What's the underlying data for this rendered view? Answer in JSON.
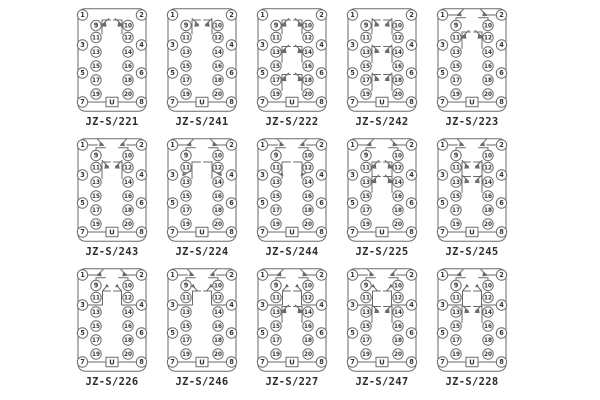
{
  "sheet": {
    "background": "#ffffff"
  },
  "colors": {
    "line": "#6a6a6c",
    "number": "#333335",
    "label": "#2d2d2f",
    "terminal_fill": "#ffffff"
  },
  "socket": {
    "corner_terminals": [
      {
        "n": "1",
        "pos": "top-left"
      },
      {
        "n": "2",
        "pos": "top-right"
      },
      {
        "n": "7",
        "pos": "bottom-left"
      },
      {
        "n": "8",
        "pos": "bottom-right"
      }
    ],
    "left_terminals": [
      "3",
      "5"
    ],
    "right_terminals": [
      "4",
      "6"
    ],
    "inner_left_terminals": [
      "9",
      "11",
      "13",
      "15",
      "17",
      "19"
    ],
    "inner_right_terminals": [
      "10",
      "12",
      "14",
      "16",
      "18",
      "20"
    ],
    "power_label": "U"
  },
  "diagrams": [
    {
      "label": "JZ-S/221",
      "contacts": [
        {
          "kind": "inner",
          "row": 0,
          "flip": false
        }
      ]
    },
    {
      "label": "JZ-S/241",
      "contacts": [
        {
          "kind": "inner",
          "row": 0,
          "flip": true
        }
      ]
    },
    {
      "label": "JZ-S/222",
      "contacts": [
        {
          "kind": "inner",
          "row": 0,
          "flip": false
        },
        {
          "kind": "inner",
          "row": 2,
          "flip": false
        },
        {
          "kind": "inner",
          "row": 4,
          "flip": false
        }
      ]
    },
    {
      "label": "JZ-S/242",
      "contacts": [
        {
          "kind": "inner",
          "row": 0,
          "flip": true
        },
        {
          "kind": "inner",
          "row": 2,
          "flip": true
        },
        {
          "kind": "inner",
          "row": 4,
          "flip": true
        }
      ]
    },
    {
      "label": "JZ-S/223",
      "contacts": [
        {
          "kind": "top",
          "flip": false
        },
        {
          "kind": "inner",
          "row": 1,
          "flip": false
        }
      ]
    },
    {
      "label": "JZ-S/243",
      "contacts": [
        {
          "kind": "top",
          "flip": true
        },
        {
          "kind": "inner",
          "row": 1,
          "flip": true
        }
      ]
    },
    {
      "label": "JZ-S/224",
      "contacts": [
        {
          "kind": "top",
          "flip": false
        },
        {
          "kind": "innerH",
          "row": 1,
          "flip": false
        }
      ]
    },
    {
      "label": "JZ-S/244",
      "contacts": [
        {
          "kind": "top",
          "flip": true
        },
        {
          "kind": "innerH",
          "row": 1,
          "flip": true
        }
      ]
    },
    {
      "label": "JZ-S/225",
      "contacts": [
        {
          "kind": "top",
          "flip": false
        },
        {
          "kind": "inner",
          "row": 1,
          "flip": false
        },
        {
          "kind": "inner",
          "row": 2,
          "flip": false
        }
      ]
    },
    {
      "label": "JZ-S/245",
      "contacts": [
        {
          "kind": "top",
          "flip": true
        },
        {
          "kind": "inner",
          "row": 1,
          "flip": true
        },
        {
          "kind": "inner",
          "row": 2,
          "flip": true
        }
      ]
    },
    {
      "label": "JZ-S/226",
      "contacts": [
        {
          "kind": "top",
          "flip": false
        },
        {
          "kind": "over",
          "row": 1,
          "flip": false
        }
      ]
    },
    {
      "label": "JZ-S/246",
      "contacts": [
        {
          "kind": "top",
          "flip": true
        },
        {
          "kind": "over",
          "row": 1,
          "flip": true
        }
      ]
    },
    {
      "label": "JZ-S/227",
      "contacts": [
        {
          "kind": "top",
          "flip": false
        },
        {
          "kind": "over",
          "row": 1,
          "flip": false
        },
        {
          "kind": "inner",
          "row": 2,
          "flip": false
        }
      ]
    },
    {
      "label": "JZ-S/247",
      "contacts": [
        {
          "kind": "top",
          "flip": true
        },
        {
          "kind": "over",
          "row": 1,
          "flip": true
        },
        {
          "kind": "inner",
          "row": 2,
          "flip": true
        }
      ]
    },
    {
      "label": "JZ-S/228",
      "contacts": [
        {
          "kind": "top",
          "flip": false
        },
        {
          "kind": "over",
          "row": 1,
          "flip": false
        },
        {
          "kind": "inner",
          "row": 2,
          "flip": true
        }
      ]
    }
  ]
}
